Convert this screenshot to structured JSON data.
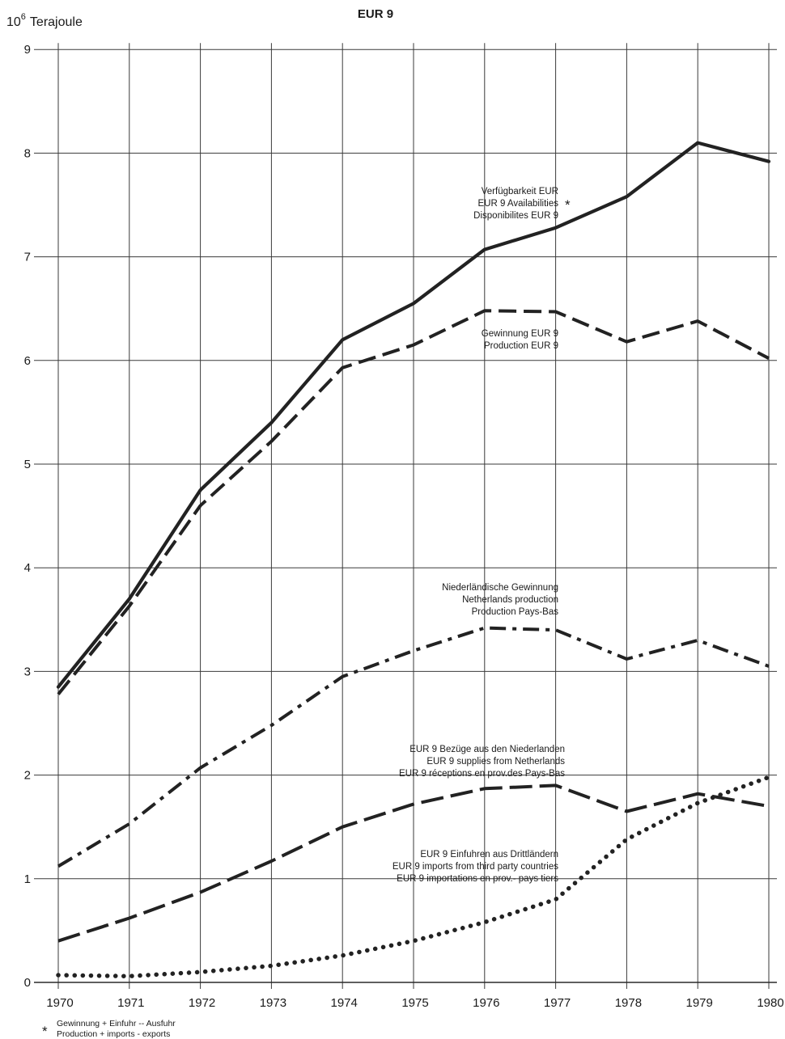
{
  "chart_data": {
    "type": "line",
    "title": "EUR 9",
    "ylabel_power": "10",
    "ylabel_exp": "6",
    "ylabel_unit": "Terajoule",
    "x": [
      "1970",
      "1971",
      "1972",
      "1973",
      "1974",
      "1975",
      "1976",
      "1977",
      "1978",
      "1979",
      "1980"
    ],
    "yticks": [
      "0",
      "1",
      "2",
      "3",
      "4",
      "5",
      "6",
      "7",
      "8",
      "9"
    ],
    "ylim": [
      0,
      9
    ],
    "grid": true,
    "series": [
      {
        "id": "availabilities",
        "style": "solid",
        "values": [
          2.85,
          3.7,
          4.75,
          5.4,
          6.2,
          6.55,
          7.07,
          7.28,
          7.58,
          8.1,
          7.92
        ],
        "label_lines": [
          "Verfügbarkeit EUR",
          "EUR 9 Availabilities",
          "Disponibilites EUR 9"
        ],
        "label_marker": "*"
      },
      {
        "id": "production",
        "style": "dashed",
        "values": [
          2.78,
          3.63,
          4.6,
          5.22,
          5.93,
          6.15,
          6.48,
          6.47,
          6.18,
          6.38,
          6.02
        ],
        "label_lines": [
          "Gewinnung EUR 9",
          "Production EUR 9"
        ]
      },
      {
        "id": "netherlands_production",
        "style": "dashdot",
        "values": [
          1.12,
          1.53,
          2.07,
          2.48,
          2.95,
          3.2,
          3.42,
          3.4,
          3.12,
          3.3,
          3.05
        ],
        "label_lines": [
          "Niederländische Gewinnung",
          "Netherlands production",
          "Production Pays-Bas"
        ]
      },
      {
        "id": "supplies_netherlands",
        "style": "longdash",
        "values": [
          0.4,
          0.62,
          0.87,
          1.17,
          1.5,
          1.72,
          1.87,
          1.9,
          1.65,
          1.82,
          1.7
        ],
        "label_lines": [
          "EUR 9 Bezüge aus den Niederlanden",
          "EUR 9 supplies from Netherlands",
          "EUR 9 réceptions en prov.des Pays-Bas"
        ]
      },
      {
        "id": "imports_third",
        "style": "dotted",
        "values": [
          0.07,
          0.06,
          0.1,
          0.16,
          0.26,
          0.4,
          0.58,
          0.8,
          1.38,
          1.73,
          1.98
        ],
        "label_lines": [
          "EUR 9 Einfuhren aus Drittländern",
          "EUR 9 imports from third party countries",
          "EUR 9 importations en prov.- pays tiers"
        ]
      }
    ],
    "footnote": {
      "marker": "*",
      "lines": [
        "Gewinnung + Einfuhr -- Ausfuhr",
        "Production + imports - exports"
      ]
    }
  }
}
